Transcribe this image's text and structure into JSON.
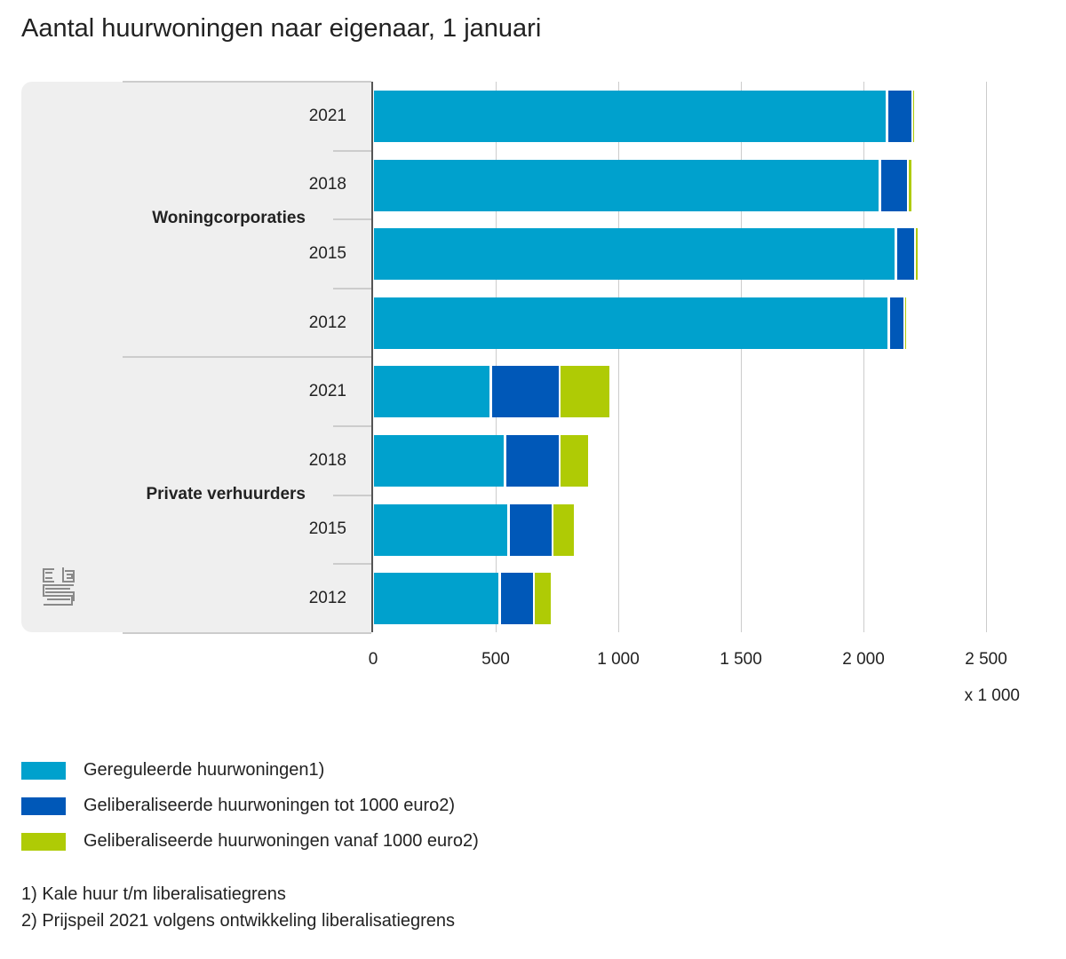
{
  "chart_data": {
    "type": "bar",
    "orientation": "horizontal",
    "stacked": true,
    "title": "Aantal huurwoningen naar eigenaar, 1 januari",
    "unit_label": "x 1 000",
    "xlim": [
      0,
      2500
    ],
    "x_ticks": [
      "0",
      "500",
      "1 000",
      "1 500",
      "2 000",
      "2 500"
    ],
    "x_tick_values": [
      0,
      500,
      1000,
      1500,
      2000,
      2500
    ],
    "grid": true,
    "legend_position": "bottom",
    "groups": [
      {
        "name": "Woningcorporaties",
        "categories": [
          "2021",
          "2018",
          "2015",
          "2012"
        ]
      },
      {
        "name": "Private verhuurders",
        "categories": [
          "2021",
          "2018",
          "2015",
          "2012"
        ]
      }
    ],
    "series": [
      {
        "name": "Gereguleerde huurwoningen1)",
        "color": "#00a1cd",
        "values": [
          2094,
          2065,
          2130,
          2101,
          478,
          536,
          551,
          514
        ]
      },
      {
        "name": "Geliberaliseerde huurwoningen tot 1000 euro2)",
        "color": "#0058b8",
        "values": [
          100,
          112,
          78,
          62,
          279,
          221,
          177,
          138
        ]
      },
      {
        "name": "Geliberaliseerde huurwoningen vanaf 1000 euro2)",
        "color": "#afcb05",
        "values": [
          9,
          17,
          7,
          7,
          207,
          120,
          91,
          73
        ]
      }
    ]
  },
  "footnotes": [
    "1) Kale huur t/m liberalisatiegrens",
    "2) Prijspeil 2021 volgens ontwikkeling liberalisatiegrens"
  ],
  "logo": "cbs"
}
